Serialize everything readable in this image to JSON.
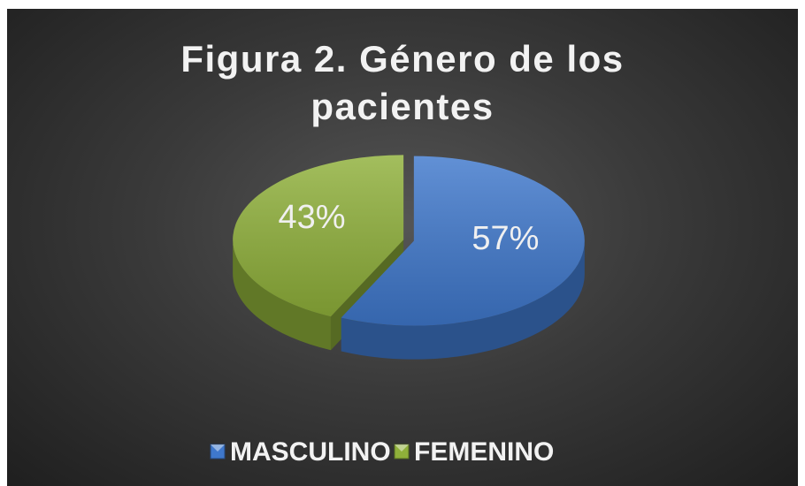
{
  "chart_data": {
    "type": "pie",
    "title": "Figura 2. Género de los pacientes",
    "labels": [
      "MASCULINO",
      "FEMENINO"
    ],
    "values": [
      57,
      43
    ],
    "value_labels": [
      "57%",
      "43%"
    ],
    "colors": [
      "#3f78cc",
      "#8fb03a"
    ],
    "legend": "bottom"
  }
}
